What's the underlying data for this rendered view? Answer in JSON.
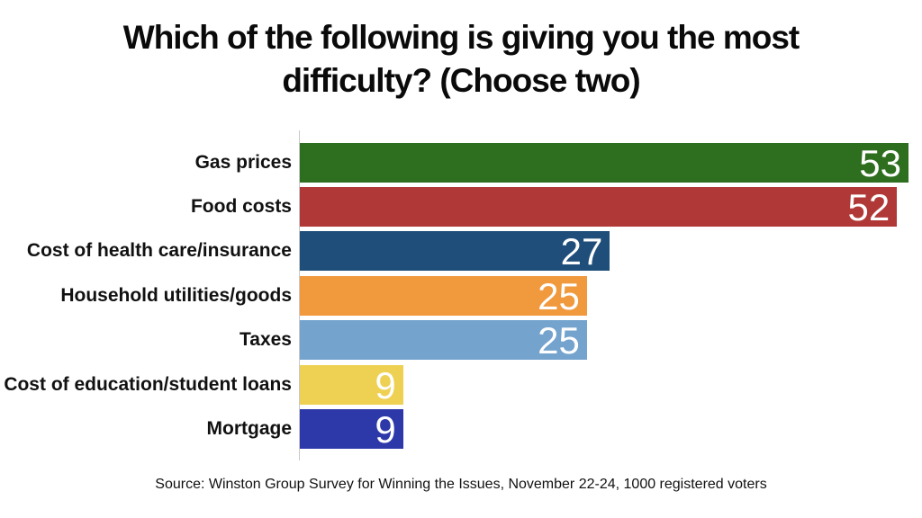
{
  "title_lines": [
    "Which of the following is giving you the most",
    "difficulty? (Choose two)"
  ],
  "source": "Source: Winston Group Survey for Winning the Issues, November 22-24, 1000 registered voters",
  "chart_data": {
    "type": "bar",
    "orientation": "horizontal",
    "title": "Which of the following is giving you the most difficulty? (Choose two)",
    "categories": [
      "Gas prices",
      "Food costs",
      "Cost of health care/insurance",
      "Household utilities/goods",
      "Taxes",
      "Cost of education/student loans",
      "Mortgage"
    ],
    "values": [
      53,
      52,
      27,
      25,
      25,
      9,
      9
    ],
    "bar_colors": [
      "#2e6e1f",
      "#b03937",
      "#1f4e7a",
      "#f0993d",
      "#74a3ce",
      "#eed052",
      "#2d38a9"
    ],
    "value_label_color": "#ffffff",
    "value_label_position": "inside-end",
    "xlim": [
      0,
      53
    ],
    "grid": false,
    "legend": false,
    "axis_line_color": "#c9c9c9",
    "background_color": "#ffffff"
  }
}
